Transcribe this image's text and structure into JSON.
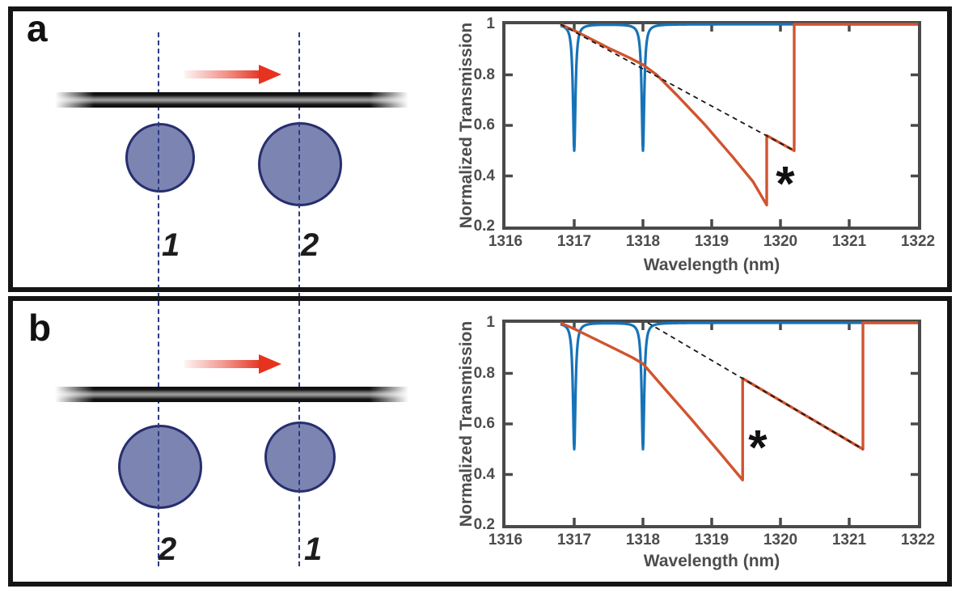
{
  "panels": [
    {
      "label": "a",
      "schematic": {
        "arrow_direction": "right",
        "resonators": [
          {
            "label": "1",
            "size": "small",
            "position": "left"
          },
          {
            "label": "2",
            "size": "large",
            "position": "right"
          }
        ]
      }
    },
    {
      "label": "b",
      "schematic": {
        "arrow_direction": "right",
        "resonators": [
          {
            "label": "2",
            "size": "large",
            "position": "left"
          },
          {
            "label": "1",
            "size": "small",
            "position": "right"
          }
        ]
      }
    }
  ],
  "chart_data": [
    {
      "type": "line",
      "title": "",
      "xlabel": "Wavelength (nm)",
      "ylabel": "Normalized Transmission",
      "xlim": [
        1316,
        1322
      ],
      "ylim": [
        0.2,
        1
      ],
      "xticks": [
        1316,
        1317,
        1318,
        1319,
        1320,
        1321,
        1322
      ],
      "yticks": [
        1,
        0.8,
        0.6,
        0.4,
        0.2
      ],
      "ytick_labels": [
        "1",
        "0.8",
        "0.6",
        "0.4",
        "0.2"
      ],
      "grid": false,
      "legend_position": "none",
      "series": [
        {
          "id": "cold-cavity-transmission",
          "color": "#1673b8",
          "width": 3.2,
          "baseline": 1.0,
          "x_start": 1316.8,
          "x_end": 1322,
          "dips": [
            {
              "center": 1317.0,
              "min": 0.5,
              "hwhm": 0.022
            },
            {
              "center": 1318.0,
              "min": 0.5,
              "hwhm": 0.022
            }
          ]
        },
        {
          "id": "swept-transmission",
          "color": "#d0542e",
          "width": 3.4,
          "points": [
            [
              1316.8,
              1.0
            ],
            [
              1317.0,
              0.975
            ],
            [
              1317.2,
              0.948
            ],
            [
              1317.5,
              0.906
            ],
            [
              1317.8,
              0.868
            ],
            [
              1318.0,
              0.84
            ],
            [
              1318.2,
              0.8
            ],
            [
              1318.5,
              0.718
            ],
            [
              1318.9,
              0.603
            ],
            [
              1319.3,
              0.477
            ],
            [
              1319.6,
              0.378
            ],
            [
              1319.8,
              0.285
            ],
            [
              1319.8,
              0.56
            ],
            [
              1320.0,
              0.53
            ],
            [
              1320.2,
              0.5
            ],
            [
              1320.2,
              1.0
            ],
            [
              1322.0,
              1.0
            ]
          ]
        },
        {
          "id": "thermal-drift-guide",
          "color": "#1a1a1a",
          "width": 1.8,
          "dashed": true,
          "points": [
            [
              1316.8,
              1.0
            ],
            [
              1320.2,
              0.5
            ]
          ]
        }
      ],
      "annotations": [
        {
          "text": "*",
          "x": 1320.07,
          "y": 0.4,
          "fontsize": 60
        }
      ]
    },
    {
      "type": "line",
      "title": "",
      "xlabel": "Wavelength (nm)",
      "ylabel": "Normalized Transmission",
      "xlim": [
        1316,
        1322
      ],
      "ylim": [
        0.2,
        1
      ],
      "xticks": [
        1316,
        1317,
        1318,
        1319,
        1320,
        1321,
        1322
      ],
      "yticks": [
        1,
        0.8,
        0.6,
        0.4,
        0.2
      ],
      "ytick_labels": [
        "1",
        "0.8",
        "0.6",
        "0.4",
        "0.2"
      ],
      "grid": false,
      "legend_position": "none",
      "series": [
        {
          "id": "cold-cavity-transmission",
          "color": "#1673b8",
          "width": 3.2,
          "baseline": 1.0,
          "x_start": 1316.8,
          "x_end": 1322,
          "dips": [
            {
              "center": 1317.0,
              "min": 0.5,
              "hwhm": 0.022
            },
            {
              "center": 1318.0,
              "min": 0.5,
              "hwhm": 0.022
            }
          ]
        },
        {
          "id": "swept-transmission",
          "color": "#d0542e",
          "width": 3.4,
          "points": [
            [
              1316.8,
              1.0
            ],
            [
              1317.0,
              0.976
            ],
            [
              1317.3,
              0.936
            ],
            [
              1317.6,
              0.896
            ],
            [
              1317.85,
              0.862
            ],
            [
              1318.0,
              0.838
            ],
            [
              1318.3,
              0.744
            ],
            [
              1318.7,
              0.62
            ],
            [
              1319.1,
              0.492
            ],
            [
              1319.45,
              0.378
            ],
            [
              1319.45,
              0.78
            ],
            [
              1319.9,
              0.708
            ],
            [
              1320.4,
              0.628
            ],
            [
              1320.9,
              0.548
            ],
            [
              1321.2,
              0.5
            ],
            [
              1321.2,
              1.0
            ],
            [
              1322.0,
              1.0
            ]
          ]
        },
        {
          "id": "thermal-drift-guide",
          "color": "#1a1a1a",
          "width": 1.8,
          "dashed": true,
          "points": [
            [
              1318.07,
              1.0
            ],
            [
              1321.2,
              0.5
            ]
          ]
        }
      ],
      "annotations": [
        {
          "text": "*",
          "x": 1319.67,
          "y": 0.537,
          "fontsize": 60
        }
      ]
    }
  ],
  "colors": {
    "curve_blue": "#1673b8",
    "curve_orange": "#d0542e",
    "axis_gray": "#4a4a4a",
    "resonator_fill": "#7c84b1",
    "resonator_stroke": "#272e6e",
    "guide_dashed_blue": "#2c3a84",
    "arrow_red": "#e6331f",
    "panel_border": "#151515",
    "annotation_black": "#111111"
  }
}
